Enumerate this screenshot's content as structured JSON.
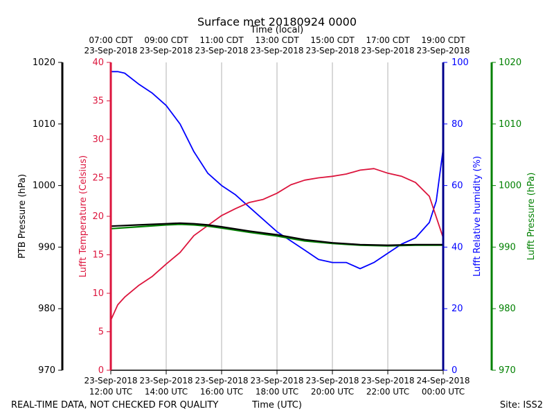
{
  "chart_data": {
    "type": "line",
    "title": "Surface met 20180924 0000",
    "top_axis_label": "Time (local)",
    "bottom_axis_label": "Time (UTC)",
    "footer_left": "REAL-TIME DATA, NOT CHECKED FOR QUALITY",
    "footer_right": "Site: ISS2",
    "x_range_hours": [
      0,
      12
    ],
    "x_grid_hours": [
      2,
      4,
      6,
      8,
      10
    ],
    "bottom_ticks": [
      {
        "hour": 0,
        "date": "23-Sep-2018",
        "time": "12:00 UTC"
      },
      {
        "hour": 2,
        "date": "23-Sep-2018",
        "time": "14:00 UTC"
      },
      {
        "hour": 4,
        "date": "23-Sep-2018",
        "time": "16:00 UTC"
      },
      {
        "hour": 6,
        "date": "23-Sep-2018",
        "time": "18:00 UTC"
      },
      {
        "hour": 8,
        "date": "23-Sep-2018",
        "time": "20:00 UTC"
      },
      {
        "hour": 10,
        "date": "23-Sep-2018",
        "time": "22:00 UTC"
      },
      {
        "hour": 12,
        "date": "24-Sep-2018",
        "time": "00:00 UTC"
      }
    ],
    "top_ticks": [
      {
        "hour": 0,
        "time": "07:00 CDT",
        "date": "23-Sep-2018"
      },
      {
        "hour": 2,
        "time": "09:00 CDT",
        "date": "23-Sep-2018"
      },
      {
        "hour": 4,
        "time": "11:00 CDT",
        "date": "23-Sep-2018"
      },
      {
        "hour": 6,
        "time": "13:00 CDT",
        "date": "23-Sep-2018"
      },
      {
        "hour": 8,
        "time": "15:00 CDT",
        "date": "23-Sep-2018"
      },
      {
        "hour": 10,
        "time": "17:00 CDT",
        "date": "23-Sep-2018"
      },
      {
        "hour": 12,
        "time": "19:00 CDT",
        "date": "23-Sep-2018"
      }
    ],
    "axes": {
      "ptb_pressure": {
        "label": "PTB Pressure (hPa)",
        "range": [
          970,
          1020
        ],
        "ticks": [
          970,
          980,
          990,
          1000,
          1010,
          1020
        ],
        "color": "#000000"
      },
      "temperature": {
        "label": "Lufft Temperature (Celsius)",
        "range": [
          0,
          40
        ],
        "ticks": [
          0,
          5,
          10,
          15,
          20,
          25,
          30,
          35,
          40
        ],
        "color": "#dc143c"
      },
      "humidity": {
        "label": "Lufft Relative humidity (%)",
        "range": [
          0,
          100
        ],
        "ticks": [
          0,
          20,
          40,
          60,
          80,
          100
        ],
        "color": "#0000ff"
      },
      "lufft_pressure": {
        "label": "Lufft Pressure (hPa)",
        "range": [
          970,
          1020
        ],
        "ticks": [
          970,
          980,
          990,
          1000,
          1010,
          1020
        ],
        "color": "#008000"
      }
    },
    "series": [
      {
        "name": "Lufft Temperature (Celsius)",
        "axis": "temperature",
        "color": "#dc143c",
        "x": [
          0,
          0.25,
          0.5,
          1,
          1.5,
          2,
          2.5,
          3,
          3.5,
          4,
          4.5,
          5,
          5.5,
          6,
          6.5,
          7,
          7.5,
          8,
          8.5,
          9,
          9.5,
          10,
          10.5,
          11,
          11.5,
          12
        ],
        "values": [
          6.5,
          8.5,
          9.5,
          11,
          12.2,
          13.8,
          15.3,
          17.5,
          18.8,
          20.1,
          21.0,
          21.8,
          22.2,
          23.0,
          24.1,
          24.7,
          25.0,
          25.2,
          25.5,
          26.0,
          26.2,
          25.6,
          25.2,
          24.4,
          22.6,
          17.2
        ]
      },
      {
        "name": "Lufft Relative humidity (%)",
        "axis": "humidity",
        "color": "#0000ff",
        "x": [
          0,
          0.25,
          0.5,
          1,
          1.5,
          2,
          2.5,
          3,
          3.5,
          4,
          4.5,
          5,
          5.5,
          6,
          6.5,
          7,
          7.5,
          8,
          8.5,
          9,
          9.5,
          10,
          10.5,
          11,
          11.5,
          11.75,
          12
        ],
        "values": [
          97,
          97,
          96.5,
          93,
          90,
          86,
          80,
          71,
          64,
          60,
          57,
          53,
          49,
          45,
          42,
          39,
          36,
          35,
          35,
          33,
          35,
          38,
          41,
          43,
          48,
          55,
          72
        ]
      },
      {
        "name": "PTB Pressure (hPa)",
        "axis": "ptb_pressure",
        "color": "#000000",
        "x": [
          0,
          1,
          2,
          2.5,
          3,
          3.5,
          4,
          5,
          6,
          7,
          8,
          9,
          10,
          11,
          12
        ],
        "values": [
          993.4,
          993.6,
          993.8,
          993.9,
          993.8,
          993.6,
          993.3,
          992.6,
          992.0,
          991.2,
          990.7,
          990.4,
          990.3,
          990.4,
          990.4
        ]
      },
      {
        "name": "Lufft Pressure (hPa)",
        "axis": "lufft_pressure",
        "color": "#008000",
        "x": [
          0,
          1,
          2,
          2.5,
          3,
          3.5,
          4,
          5,
          6,
          7,
          8,
          9,
          10,
          11,
          12
        ],
        "values": [
          993.0,
          993.3,
          993.6,
          993.7,
          993.6,
          993.4,
          993.1,
          992.4,
          991.8,
          991.0,
          990.6,
          990.3,
          990.2,
          990.3,
          990.3
        ]
      }
    ]
  }
}
